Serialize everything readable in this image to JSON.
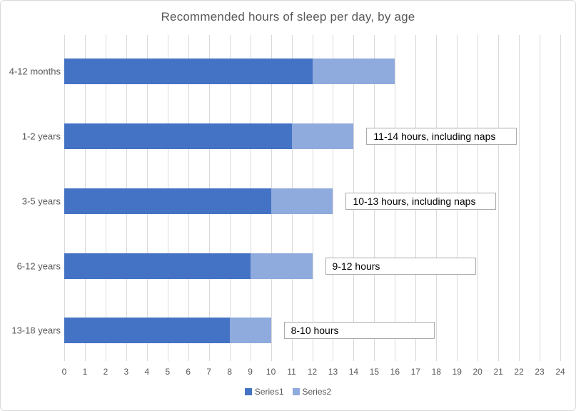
{
  "chart_data": {
    "type": "bar",
    "orientation": "horizontal",
    "stacked": true,
    "title": "Recommended hours of sleep per day, by age",
    "categories": [
      "4-12 months",
      "1-2 years",
      "3-5 years",
      "6-12 years",
      "13-18 years"
    ],
    "series": [
      {
        "name": "Series1",
        "color": "#4472C4",
        "values": [
          12,
          11,
          10,
          9,
          8
        ]
      },
      {
        "name": "Series2",
        "color": "#8FAADC",
        "values": [
          4,
          3,
          3,
          3,
          2
        ]
      }
    ],
    "stacked_totals": [
      16,
      14,
      13,
      12,
      10
    ],
    "xlim": [
      0,
      24
    ],
    "xticks": [
      "0",
      "1",
      "2",
      "3",
      "4",
      "5",
      "6",
      "7",
      "8",
      "9",
      "10",
      "11",
      "12",
      "13",
      "14",
      "15",
      "16",
      "17",
      "18",
      "19",
      "20",
      "21",
      "22",
      "23",
      "24"
    ],
    "grid": "vertical",
    "legend_position": "bottom",
    "annotations": [
      {
        "category_index": 1,
        "text": "11-14 hours, including naps"
      },
      {
        "category_index": 2,
        "text": "10-13 hours, including naps"
      },
      {
        "category_index": 3,
        "text": "9-12 hours"
      },
      {
        "category_index": 4,
        "text": "8-10 hours"
      }
    ]
  },
  "colors": {
    "series1": "#4472C4",
    "series2": "#8FAADC",
    "gridline": "#D9D9D9",
    "axis_text": "#595959",
    "title_text": "#595959",
    "annotation_border": "#ABABAB",
    "chart_border": "#D9D9D9"
  }
}
